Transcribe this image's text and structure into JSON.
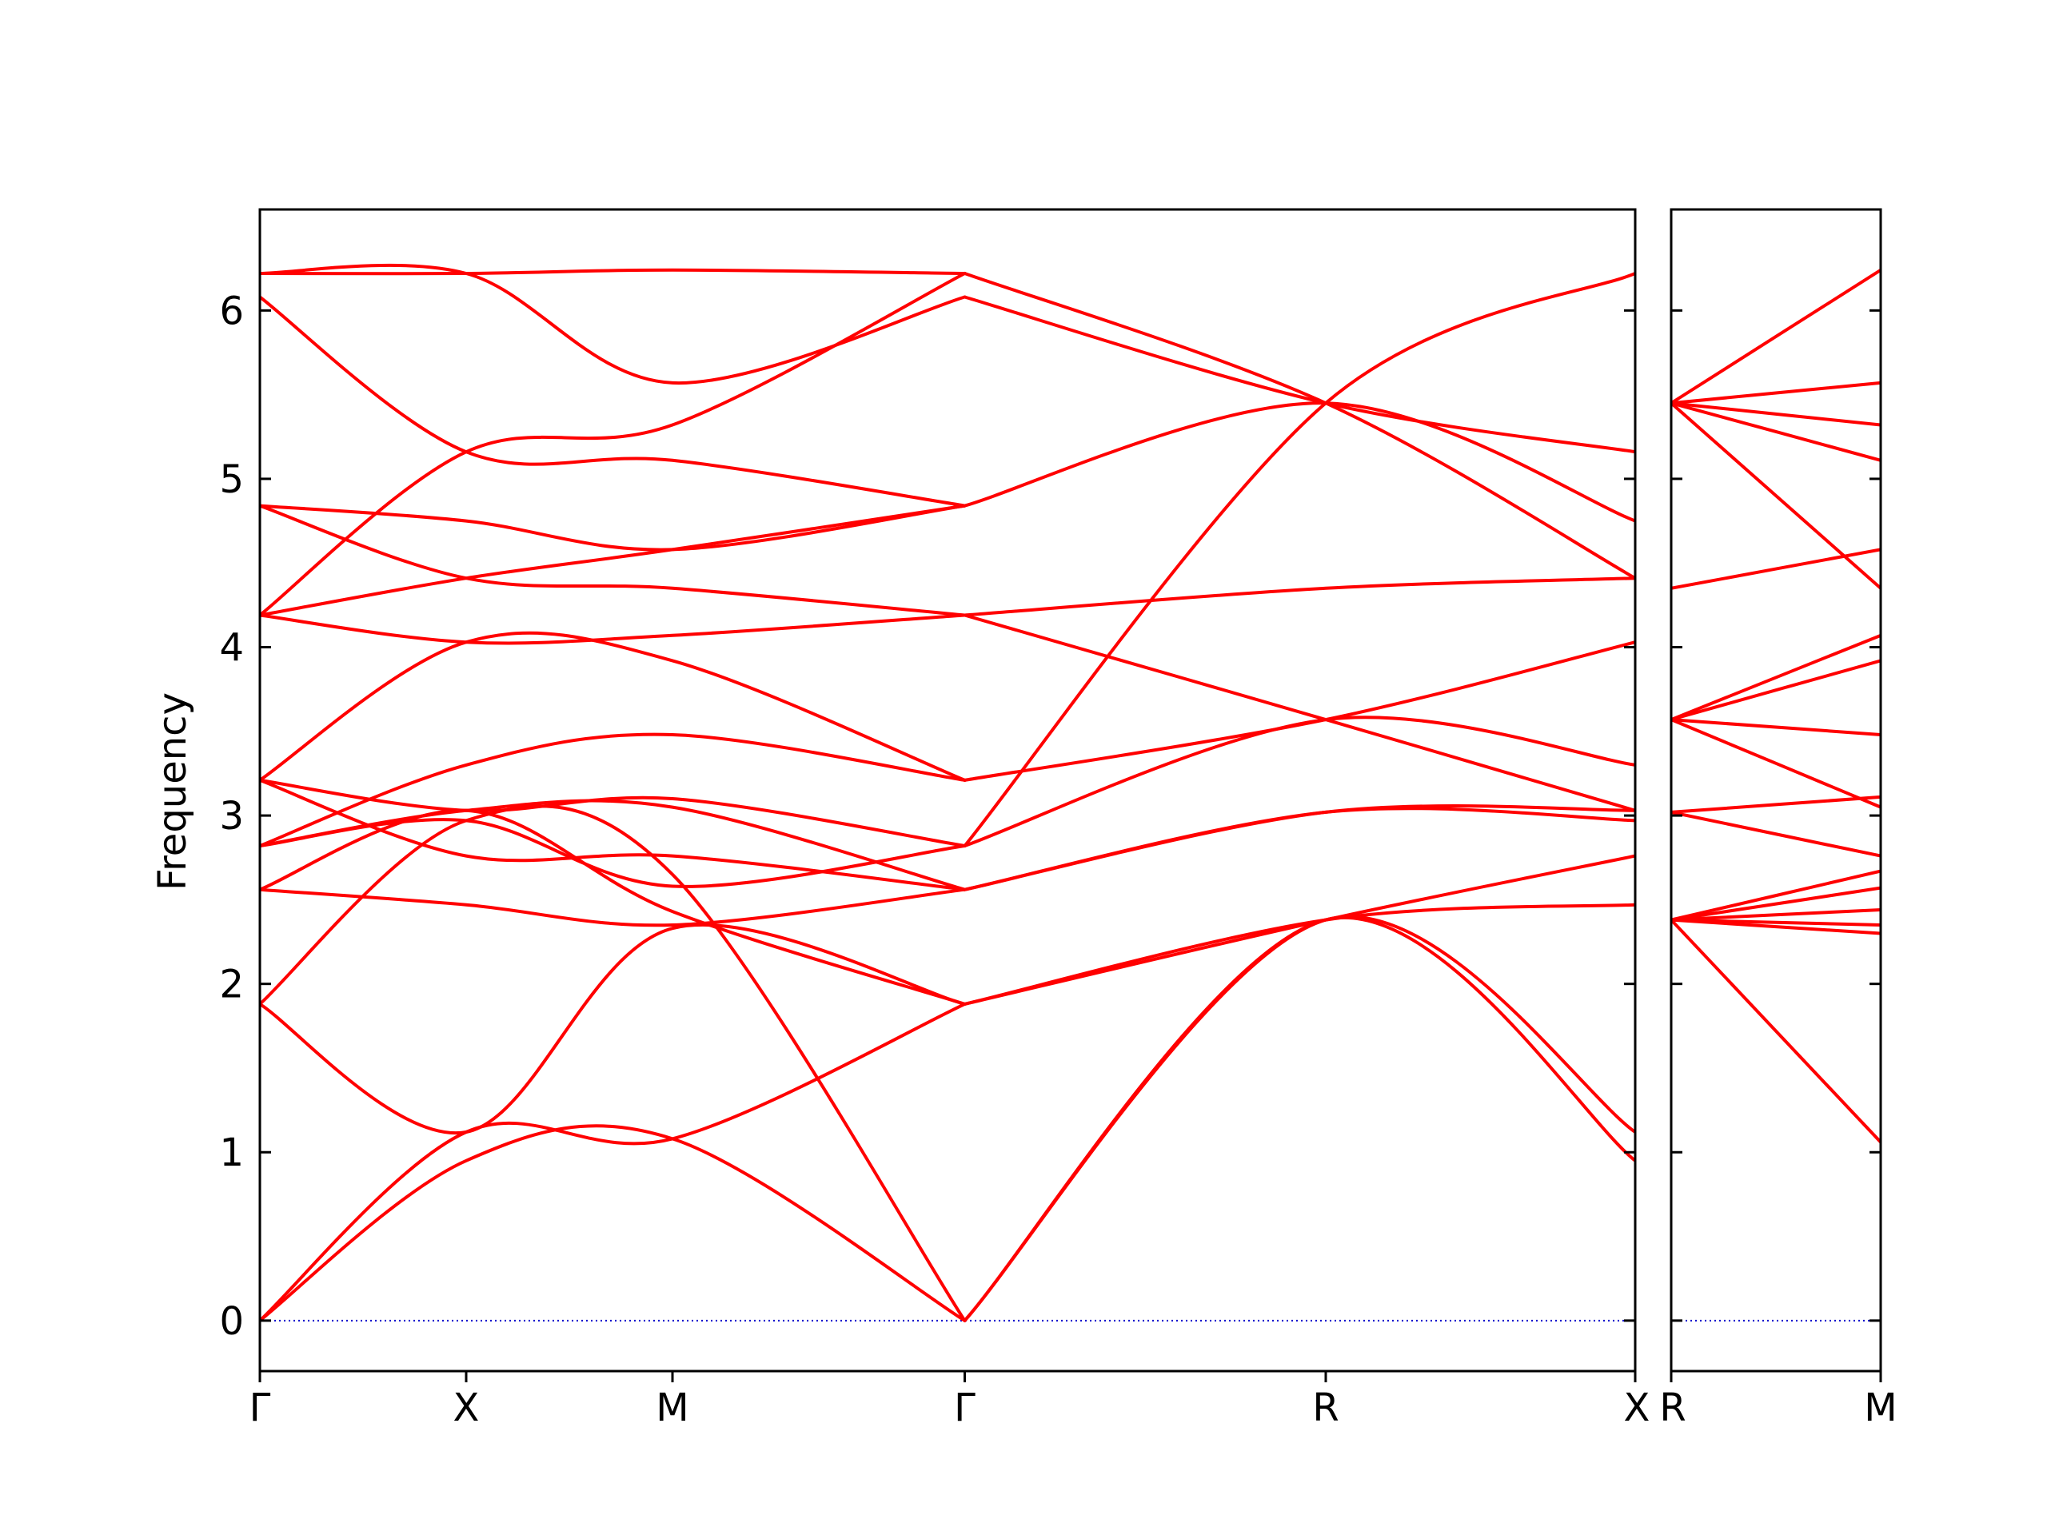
{
  "chart_data": {
    "type": "line",
    "ylabel": "Frequency",
    "xlabel": "",
    "title": "",
    "ylim": [
      -0.3,
      6.6
    ],
    "yticks": [
      0,
      1,
      2,
      3,
      4,
      5,
      6
    ],
    "ytick_labels": [
      "0",
      "1",
      "2",
      "3",
      "4",
      "5",
      "6"
    ],
    "grid": false,
    "line_color": "#ff0000",
    "zero_line_color": "#0000cc",
    "panels": [
      {
        "xlim": [
          0,
          4.0
        ],
        "xticks": [
          0,
          0.6,
          1.2,
          2.05,
          3.1,
          4.0
        ],
        "xtick_labels": [
          "Γ",
          "X",
          "M",
          "Γ",
          "R",
          "X"
        ],
        "bands": [
          {
            "x": [
              0,
              0.6,
              1.2,
              2.05
            ],
            "y": [
              0,
              0.95,
              1.08,
              0
            ]
          },
          {
            "x": [
              0,
              0.6,
              1.2,
              2.05
            ],
            "y": [
              0,
              1.12,
              1.08,
              1.88
            ]
          },
          {
            "x": [
              0,
              0.6,
              1.2,
              2.05
            ],
            "y": [
              1.88,
              1.12,
              2.33,
              1.88
            ]
          },
          {
            "x": [
              0,
              0.6,
              1.2,
              2.05
            ],
            "y": [
              1.88,
              2.97,
              2.65,
              0
            ]
          },
          {
            "x": [
              0,
              0.6,
              1.2,
              2.05
            ],
            "y": [
              2.56,
              2.47,
              2.35,
              2.56
            ]
          },
          {
            "x": [
              0,
              0.6,
              1.2,
              2.05
            ],
            "y": [
              2.56,
              3.03,
              2.43,
              1.88
            ]
          },
          {
            "x": [
              0,
              0.6,
              1.2,
              2.05
            ],
            "y": [
              2.82,
              2.97,
              2.58,
              2.82
            ]
          },
          {
            "x": [
              0,
              0.6,
              1.2,
              2.05
            ],
            "y": [
              2.82,
              3.03,
              3.05,
              2.56
            ]
          },
          {
            "x": [
              0,
              0.6,
              1.2,
              2.05
            ],
            "y": [
              3.21,
              2.76,
              2.76,
              2.56
            ]
          },
          {
            "x": [
              0,
              0.6,
              1.2,
              2.05
            ],
            "y": [
              3.21,
              3.03,
              3.1,
              2.82
            ]
          },
          {
            "x": [
              0,
              0.6,
              1.2,
              2.05
            ],
            "y": [
              2.82,
              3.3,
              3.48,
              3.21
            ]
          },
          {
            "x": [
              0,
              0.6,
              1.2,
              2.05
            ],
            "y": [
              3.21,
              4.03,
              3.92,
              3.21
            ]
          },
          {
            "x": [
              0,
              0.6,
              1.2,
              2.05
            ],
            "y": [
              4.19,
              4.03,
              4.07,
              4.19
            ]
          },
          {
            "x": [
              0,
              0.6,
              1.2,
              2.05
            ],
            "y": [
              4.19,
              4.41,
              4.58,
              4.84
            ]
          },
          {
            "x": [
              0,
              0.6,
              1.2,
              2.05
            ],
            "y": [
              4.84,
              4.41,
              4.35,
              4.19
            ]
          },
          {
            "x": [
              0,
              0.6,
              1.2,
              2.05
            ],
            "y": [
              4.84,
              4.75,
              4.58,
              4.84
            ]
          },
          {
            "x": [
              0,
              0.6,
              1.2,
              2.05
            ],
            "y": [
              4.19,
              5.16,
              5.32,
              6.22
            ]
          },
          {
            "x": [
              0,
              0.6,
              1.2,
              2.05
            ],
            "y": [
              6.08,
              5.16,
              5.11,
              4.84
            ]
          },
          {
            "x": [
              0,
              0.6,
              1.2,
              2.05
            ],
            "y": [
              6.22,
              6.22,
              5.57,
              6.08
            ]
          },
          {
            "x": [
              0,
              0.6,
              1.2,
              2.05
            ],
            "y": [
              6.22,
              6.22,
              6.24,
              6.22
            ]
          },
          {
            "x": [
              2.05,
              3.1,
              4.0
            ],
            "y": [
              0,
              2.38,
              0.95
            ]
          },
          {
            "x": [
              2.05,
              3.1,
              4.0
            ],
            "y": [
              0,
              2.38,
              1.12
            ]
          },
          {
            "x": [
              2.05,
              3.1,
              4.0
            ],
            "y": [
              1.88,
              2.38,
              2.47
            ]
          },
          {
            "x": [
              2.05,
              3.1,
              4.0
            ],
            "y": [
              1.88,
              2.38,
              2.76
            ]
          },
          {
            "x": [
              2.05,
              3.1,
              4.0
            ],
            "y": [
              2.56,
              3.02,
              3.03
            ]
          },
          {
            "x": [
              2.05,
              3.1,
              4.0
            ],
            "y": [
              2.56,
              3.02,
              2.97
            ]
          },
          {
            "x": [
              2.05,
              3.1,
              4.0
            ],
            "y": [
              2.82,
              3.57,
              3.3
            ]
          },
          {
            "x": [
              2.05,
              3.1,
              4.0
            ],
            "y": [
              3.21,
              3.57,
              4.03
            ]
          },
          {
            "x": [
              2.05,
              3.1,
              4.0
            ],
            "y": [
              4.19,
              3.57,
              3.03
            ]
          },
          {
            "x": [
              2.05,
              3.1,
              4.0
            ],
            "y": [
              4.84,
              5.45,
              4.75
            ]
          },
          {
            "x": [
              2.05,
              3.1,
              4.0
            ],
            "y": [
              4.19,
              4.35,
              4.41
            ]
          },
          {
            "x": [
              2.05,
              3.1,
              4.0
            ],
            "y": [
              2.82,
              5.45,
              6.22
            ]
          },
          {
            "x": [
              2.05,
              3.1,
              4.0
            ],
            "y": [
              6.08,
              5.45,
              5.16
            ]
          },
          {
            "x": [
              2.05,
              3.1,
              4.0
            ],
            "y": [
              6.22,
              5.45,
              4.41
            ]
          }
        ]
      },
      {
        "xlim": [
          0,
          1.0
        ],
        "xticks": [
          0,
          1.0
        ],
        "xtick_labels": [
          "R",
          "M"
        ],
        "bands": [
          {
            "x": [
              0,
              1
            ],
            "y": [
              2.38,
              1.06
            ]
          },
          {
            "x": [
              0,
              1
            ],
            "y": [
              2.38,
              2.3
            ]
          },
          {
            "x": [
              0,
              1
            ],
            "y": [
              2.38,
              2.35
            ]
          },
          {
            "x": [
              0,
              1
            ],
            "y": [
              2.38,
              2.44
            ]
          },
          {
            "x": [
              0,
              1
            ],
            "y": [
              2.38,
              2.57
            ]
          },
          {
            "x": [
              0,
              1
            ],
            "y": [
              2.38,
              2.67
            ]
          },
          {
            "x": [
              0,
              1
            ],
            "y": [
              3.02,
              2.76
            ]
          },
          {
            "x": [
              0,
              1
            ],
            "y": [
              3.02,
              3.11
            ]
          },
          {
            "x": [
              0,
              1
            ],
            "y": [
              3.57,
              3.05
            ]
          },
          {
            "x": [
              0,
              1
            ],
            "y": [
              3.57,
              3.48
            ]
          },
          {
            "x": [
              0,
              1
            ],
            "y": [
              3.57,
              3.92
            ]
          },
          {
            "x": [
              0,
              1
            ],
            "y": [
              3.57,
              4.07
            ]
          },
          {
            "x": [
              0,
              1
            ],
            "y": [
              4.35,
              4.58
            ]
          },
          {
            "x": [
              0,
              1
            ],
            "y": [
              5.45,
              4.35
            ]
          },
          {
            "x": [
              0,
              1
            ],
            "y": [
              5.45,
              5.11
            ]
          },
          {
            "x": [
              0,
              1
            ],
            "y": [
              5.45,
              5.32
            ]
          },
          {
            "x": [
              0,
              1
            ],
            "y": [
              5.45,
              5.57
            ]
          },
          {
            "x": [
              0,
              1
            ],
            "y": [
              5.45,
              6.24
            ]
          }
        ]
      }
    ]
  }
}
